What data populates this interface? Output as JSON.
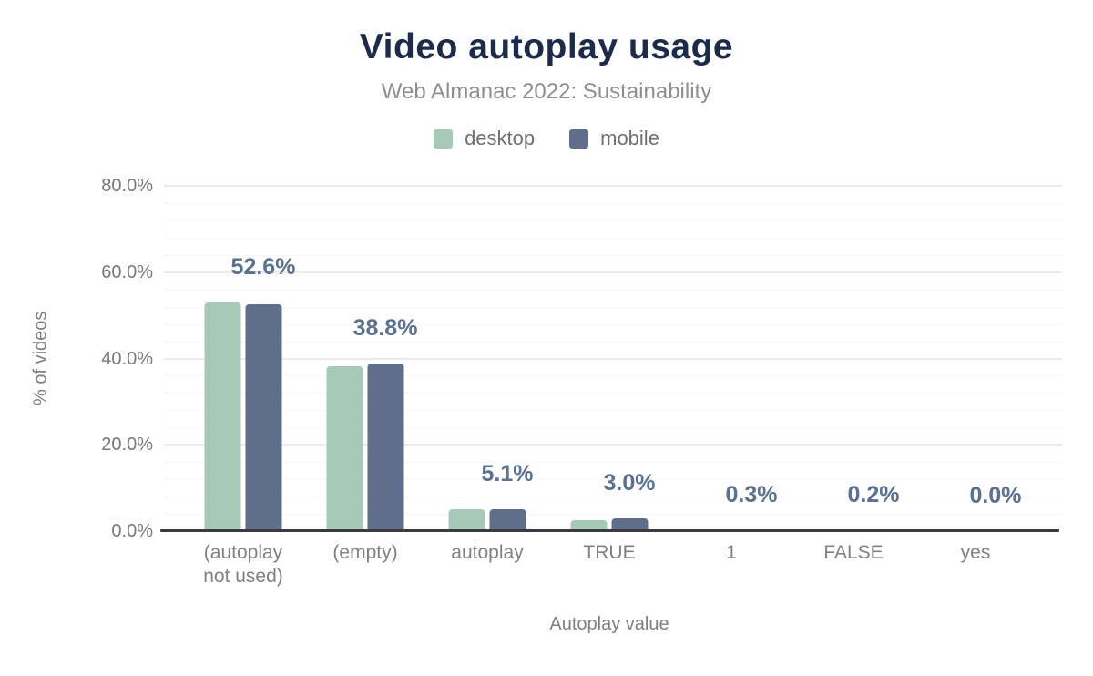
{
  "header": {
    "title": "Video autoplay usage",
    "subtitle": "Web Almanac 2022: Sustainability"
  },
  "axes": {
    "x_title": "Autoplay value",
    "y_title": "% of videos"
  },
  "chart_data": {
    "type": "bar",
    "title": "Video autoplay usage",
    "subtitle": "Web Almanac 2022: Sustainability",
    "xlabel": "Autoplay value",
    "ylabel": "% of videos",
    "categories": [
      "(autoplay not used)",
      "(empty)",
      "autoplay",
      "TRUE",
      "1",
      "FALSE",
      "yes"
    ],
    "series": [
      {
        "name": "desktop",
        "color": "#a6c9b8",
        "values": [
          52.9,
          38.3,
          5.0,
          2.5,
          0.3,
          0.2,
          0.0
        ]
      },
      {
        "name": "mobile",
        "color": "#5f6e8a",
        "values": [
          52.6,
          38.8,
          5.1,
          3.0,
          0.3,
          0.2,
          0.0
        ]
      }
    ],
    "bar_value_labels": [
      "52.6%",
      "38.8%",
      "5.1%",
      "3.0%",
      "0.3%",
      "0.2%",
      "0.0%"
    ],
    "bar_value_labels_series": "mobile",
    "ylim": [
      0,
      80
    ],
    "yticks": [
      {
        "value": 0,
        "label": "0.0%"
      },
      {
        "value": 20,
        "label": "20.0%"
      },
      {
        "value": 40,
        "label": "40.0%"
      },
      {
        "value": 60,
        "label": "60.0%"
      },
      {
        "value": 80,
        "label": "80.0%"
      }
    ],
    "minor_grid_step": 4,
    "grid": true,
    "legend_position": "top"
  },
  "colors": {
    "title": "#1c2b49",
    "subtitle": "#8b8e92",
    "bar_label": "#5a7191",
    "desktop_bar": "#a6c9b8",
    "mobile_bar": "#5f6e8a",
    "axis_line": "#3a3b3f",
    "tick_text": "#7f8285"
  }
}
